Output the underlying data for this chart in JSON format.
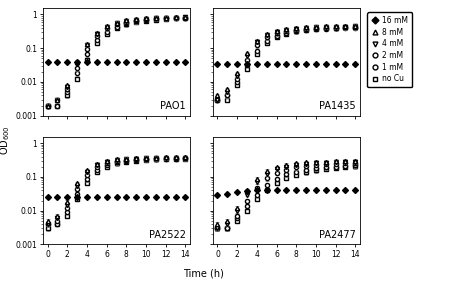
{
  "strains": [
    "PAO1",
    "PA1435",
    "PA2522",
    "PA2477"
  ],
  "conditions": [
    "16mM",
    "8mM",
    "4mM",
    "2mM",
    "1mM",
    "noCu"
  ],
  "legend_labels": [
    "16 mM",
    "8 mM",
    "4 mM",
    "2 mM",
    "1 mM",
    "no Cu"
  ],
  "markers": [
    "D",
    "^",
    "v",
    "o",
    "o",
    "s"
  ],
  "markerfacecolors": [
    "black",
    "white",
    "white",
    "white",
    "white",
    "white"
  ],
  "markeredgecolors": [
    "black",
    "black",
    "black",
    "black",
    "black",
    "black"
  ],
  "markersize": 3.0,
  "time": [
    0,
    1,
    2,
    3,
    4,
    5,
    6,
    7,
    8,
    9,
    10,
    11,
    12,
    13,
    14
  ],
  "PAO1": {
    "16mM": [
      0.04,
      0.04,
      0.04,
      0.04,
      0.04,
      0.04,
      0.04,
      0.04,
      0.04,
      0.04,
      0.04,
      0.04,
      0.04,
      0.04,
      0.04
    ],
    "8mM": [
      0.002,
      0.003,
      0.008,
      0.04,
      0.13,
      0.28,
      0.44,
      0.57,
      0.66,
      0.72,
      0.76,
      0.79,
      0.8,
      0.81,
      0.82
    ],
    "4mM": [
      0.002,
      0.003,
      0.007,
      0.035,
      0.12,
      0.265,
      0.42,
      0.555,
      0.645,
      0.705,
      0.752,
      0.782,
      0.792,
      0.8,
      0.81
    ],
    "2mM": [
      0.002,
      0.003,
      0.006,
      0.025,
      0.095,
      0.23,
      0.385,
      0.51,
      0.61,
      0.675,
      0.725,
      0.762,
      0.782,
      0.792,
      0.8
    ],
    "1mM": [
      0.002,
      0.002,
      0.005,
      0.018,
      0.065,
      0.175,
      0.305,
      0.435,
      0.545,
      0.622,
      0.682,
      0.732,
      0.762,
      0.782,
      0.792
    ],
    "noCu": [
      0.002,
      0.002,
      0.004,
      0.012,
      0.045,
      0.14,
      0.26,
      0.39,
      0.505,
      0.585,
      0.652,
      0.702,
      0.742,
      0.772,
      0.782
    ]
  },
  "PA1435": {
    "16mM": [
      0.035,
      0.035,
      0.035,
      0.035,
      0.035,
      0.035,
      0.035,
      0.035,
      0.035,
      0.035,
      0.035,
      0.035,
      0.035,
      0.035,
      0.035
    ],
    "8mM": [
      0.004,
      0.006,
      0.018,
      0.07,
      0.165,
      0.255,
      0.32,
      0.365,
      0.395,
      0.415,
      0.43,
      0.44,
      0.445,
      0.448,
      0.45
    ],
    "4mM": [
      0.003,
      0.005,
      0.015,
      0.058,
      0.148,
      0.238,
      0.302,
      0.348,
      0.378,
      0.4,
      0.416,
      0.426,
      0.432,
      0.436,
      0.438
    ],
    "2mM": [
      0.003,
      0.004,
      0.012,
      0.045,
      0.12,
      0.208,
      0.272,
      0.318,
      0.35,
      0.372,
      0.388,
      0.398,
      0.405,
      0.409,
      0.412
    ],
    "1mM": [
      0.003,
      0.004,
      0.01,
      0.032,
      0.085,
      0.162,
      0.232,
      0.282,
      0.318,
      0.345,
      0.364,
      0.377,
      0.386,
      0.391,
      0.395
    ],
    "noCu": [
      0.003,
      0.003,
      0.008,
      0.024,
      0.068,
      0.14,
      0.212,
      0.268,
      0.312,
      0.348,
      0.375,
      0.392,
      0.404,
      0.411,
      0.416
    ]
  },
  "PA2522": {
    "16mM": [
      0.025,
      0.025,
      0.025,
      0.025,
      0.025,
      0.025,
      0.025,
      0.025,
      0.025,
      0.025,
      0.025,
      0.025,
      0.025,
      0.025,
      0.025
    ],
    "8mM": [
      0.005,
      0.007,
      0.018,
      0.065,
      0.155,
      0.24,
      0.295,
      0.328,
      0.348,
      0.36,
      0.368,
      0.374,
      0.378,
      0.38,
      0.382
    ],
    "4mM": [
      0.004,
      0.006,
      0.015,
      0.055,
      0.142,
      0.228,
      0.282,
      0.315,
      0.336,
      0.35,
      0.358,
      0.365,
      0.37,
      0.373,
      0.375
    ],
    "2mM": [
      0.004,
      0.005,
      0.012,
      0.044,
      0.115,
      0.198,
      0.258,
      0.295,
      0.318,
      0.333,
      0.343,
      0.351,
      0.357,
      0.36,
      0.363
    ],
    "1mM": [
      0.004,
      0.004,
      0.009,
      0.032,
      0.085,
      0.16,
      0.225,
      0.268,
      0.296,
      0.315,
      0.328,
      0.338,
      0.345,
      0.349,
      0.352
    ],
    "noCu": [
      0.003,
      0.004,
      0.007,
      0.022,
      0.065,
      0.138,
      0.202,
      0.25,
      0.282,
      0.305,
      0.32,
      0.332,
      0.34,
      0.346,
      0.35
    ]
  },
  "PA2477": {
    "16mM": [
      0.03,
      0.032,
      0.035,
      0.038,
      0.04,
      0.04,
      0.04,
      0.04,
      0.04,
      0.04,
      0.04,
      0.04,
      0.04,
      0.04,
      0.04
    ],
    "8mM": [
      0.004,
      0.005,
      0.012,
      0.038,
      0.088,
      0.148,
      0.192,
      0.228,
      0.252,
      0.268,
      0.278,
      0.285,
      0.29,
      0.293,
      0.295
    ],
    "4mM": [
      0.003,
      0.004,
      0.01,
      0.03,
      0.072,
      0.125,
      0.168,
      0.202,
      0.228,
      0.246,
      0.258,
      0.267,
      0.274,
      0.278,
      0.281
    ],
    "2mM": [
      0.003,
      0.003,
      0.007,
      0.02,
      0.048,
      0.09,
      0.13,
      0.165,
      0.192,
      0.212,
      0.228,
      0.24,
      0.249,
      0.256,
      0.261
    ],
    "1mM": [
      0.003,
      0.003,
      0.006,
      0.014,
      0.03,
      0.058,
      0.088,
      0.118,
      0.142,
      0.162,
      0.178,
      0.192,
      0.203,
      0.212,
      0.219
    ],
    "noCu": [
      0.003,
      0.003,
      0.005,
      0.01,
      0.022,
      0.042,
      0.066,
      0.092,
      0.115,
      0.136,
      0.155,
      0.172,
      0.186,
      0.196,
      0.205
    ]
  },
  "ylabel": "OD$_{600}$",
  "xlabel": "Time (h)",
  "ylim": [
    0.001,
    1.5
  ],
  "yticks": [
    0.001,
    0.01,
    0.1,
    1
  ],
  "yticklabels": [
    "0.001",
    "0.01",
    "0.1",
    "1"
  ],
  "xticks": [
    0,
    2,
    4,
    6,
    8,
    10,
    12,
    14
  ],
  "background_color": "#ffffff",
  "linewidth": 0.6,
  "capsize": 1.2,
  "errorbar_color": "gray"
}
